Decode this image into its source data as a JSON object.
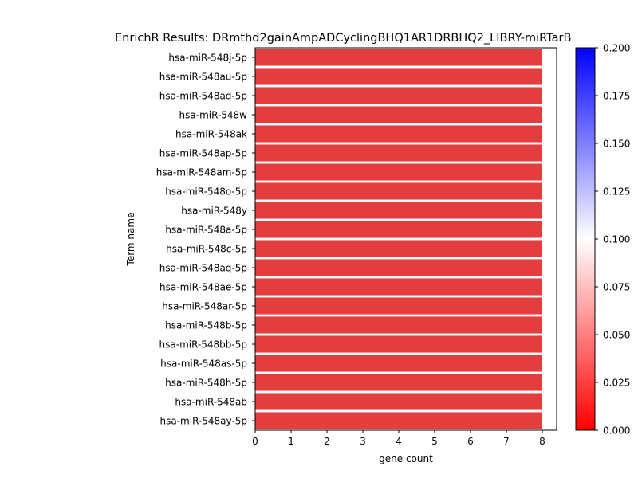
{
  "chart_data": {
    "type": "bar",
    "orientation": "horizontal",
    "title": "EnrichR Results: DRmthd2gainAmpADCyclingBHQ1AR1DRBHQ2_LIBRY-miRTarB",
    "xlabel": "gene count",
    "ylabel": "Term name",
    "xlim": [
      0,
      8.4
    ],
    "xticks": [
      "0",
      "1",
      "2",
      "3",
      "4",
      "5",
      "6",
      "7",
      "8"
    ],
    "categories": [
      "hsa-miR-548j-5p",
      "hsa-miR-548au-5p",
      "hsa-miR-548ad-5p",
      "hsa-miR-548w",
      "hsa-miR-548ak",
      "hsa-miR-548ap-5p",
      "hsa-miR-548am-5p",
      "hsa-miR-548o-5p",
      "hsa-miR-548y",
      "hsa-miR-548a-5p",
      "hsa-miR-548c-5p",
      "hsa-miR-548aq-5p",
      "hsa-miR-548ae-5p",
      "hsa-miR-548ar-5p",
      "hsa-miR-548b-5p",
      "hsa-miR-548bb-5p",
      "hsa-miR-548as-5p",
      "hsa-miR-548h-5p",
      "hsa-miR-548ab",
      "hsa-miR-548ay-5p"
    ],
    "values": [
      8,
      8,
      8,
      8,
      8,
      8,
      8,
      8,
      8,
      8,
      8,
      8,
      8,
      8,
      8,
      8,
      8,
      8,
      8,
      8
    ],
    "bar_color": "#e33d3d",
    "colorbar": {
      "range": [
        0.0,
        0.2
      ],
      "ticks": [
        "0.000",
        "0.025",
        "0.050",
        "0.075",
        "0.100",
        "0.125",
        "0.150",
        "0.175",
        "0.200"
      ],
      "colors": [
        "#ff0000",
        "#ffffff",
        "#0000ff"
      ]
    },
    "grid": false,
    "legend": "none"
  }
}
